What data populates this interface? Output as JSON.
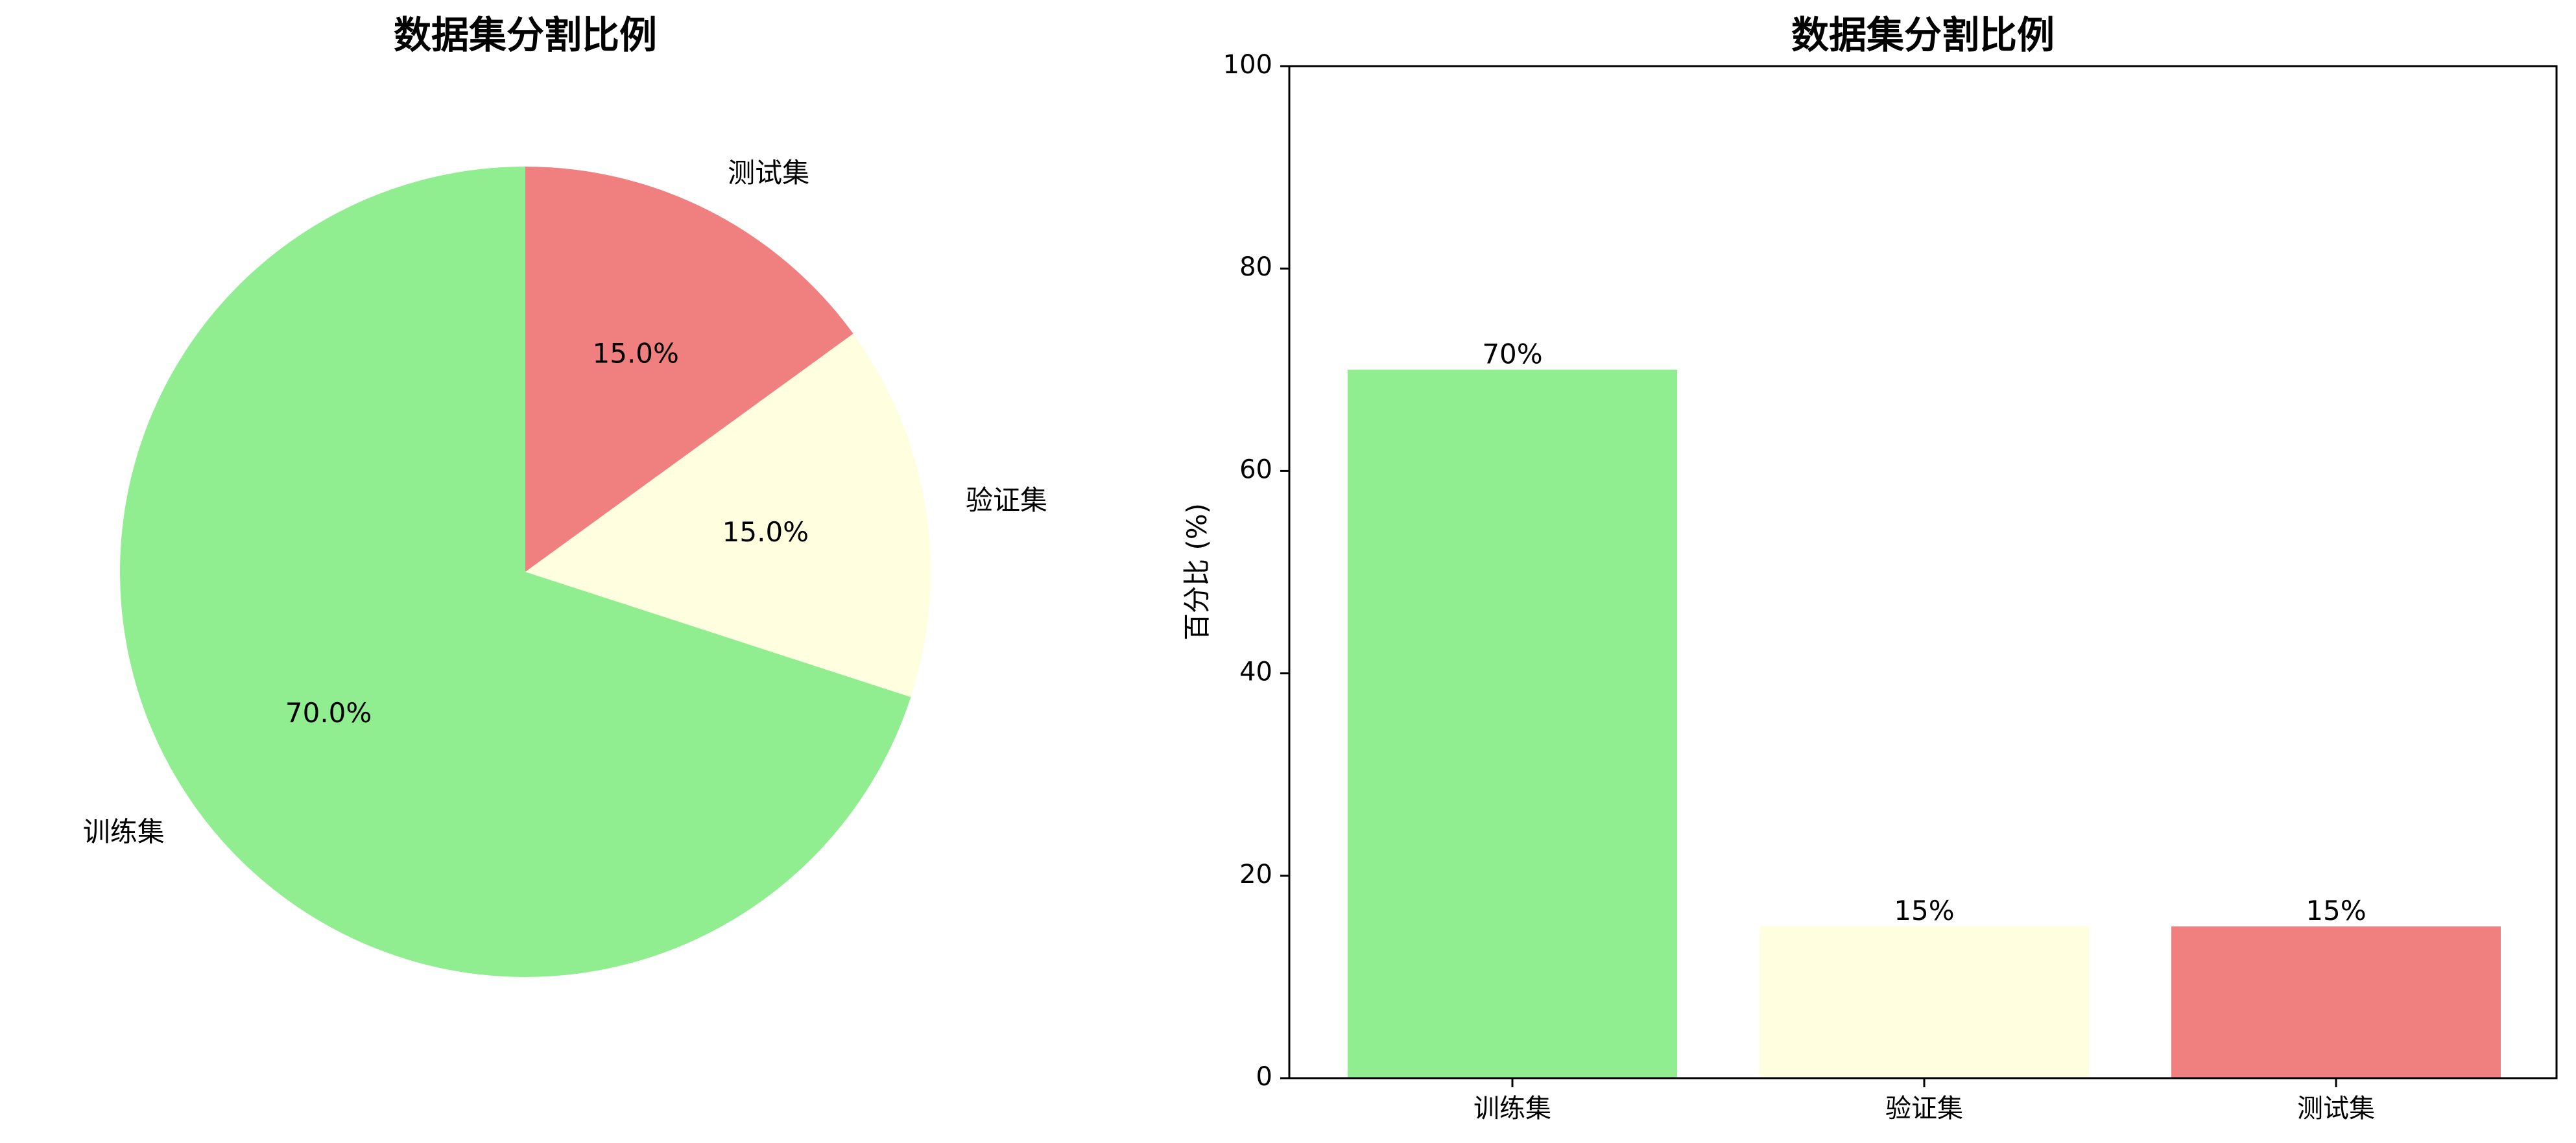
{
  "chart_data": [
    {
      "type": "pie",
      "title": "数据集分割比例",
      "categories": [
        "训练集",
        "验证集",
        "测试集"
      ],
      "values": [
        70,
        15,
        15
      ],
      "pct_labels": [
        "70.0%",
        "15.0%",
        "15.0%"
      ],
      "colors": [
        "#90EE90",
        "#FFFFE0",
        "#F08080"
      ],
      "start_angle_deg": 90,
      "direction": "counterclockwise"
    },
    {
      "type": "bar",
      "title": "数据集分割比例",
      "categories": [
        "训练集",
        "验证集",
        "测试集"
      ],
      "values": [
        70,
        15,
        15
      ],
      "value_labels": [
        "70%",
        "15%",
        "15%"
      ],
      "colors": [
        "#90EE90",
        "#FFFFE0",
        "#F08080"
      ],
      "xlabel": "",
      "ylabel": "百分比 (%)",
      "ylim": [
        0,
        100
      ],
      "yticks": [
        0,
        20,
        40,
        60,
        80,
        100
      ],
      "grid": false
    }
  ]
}
